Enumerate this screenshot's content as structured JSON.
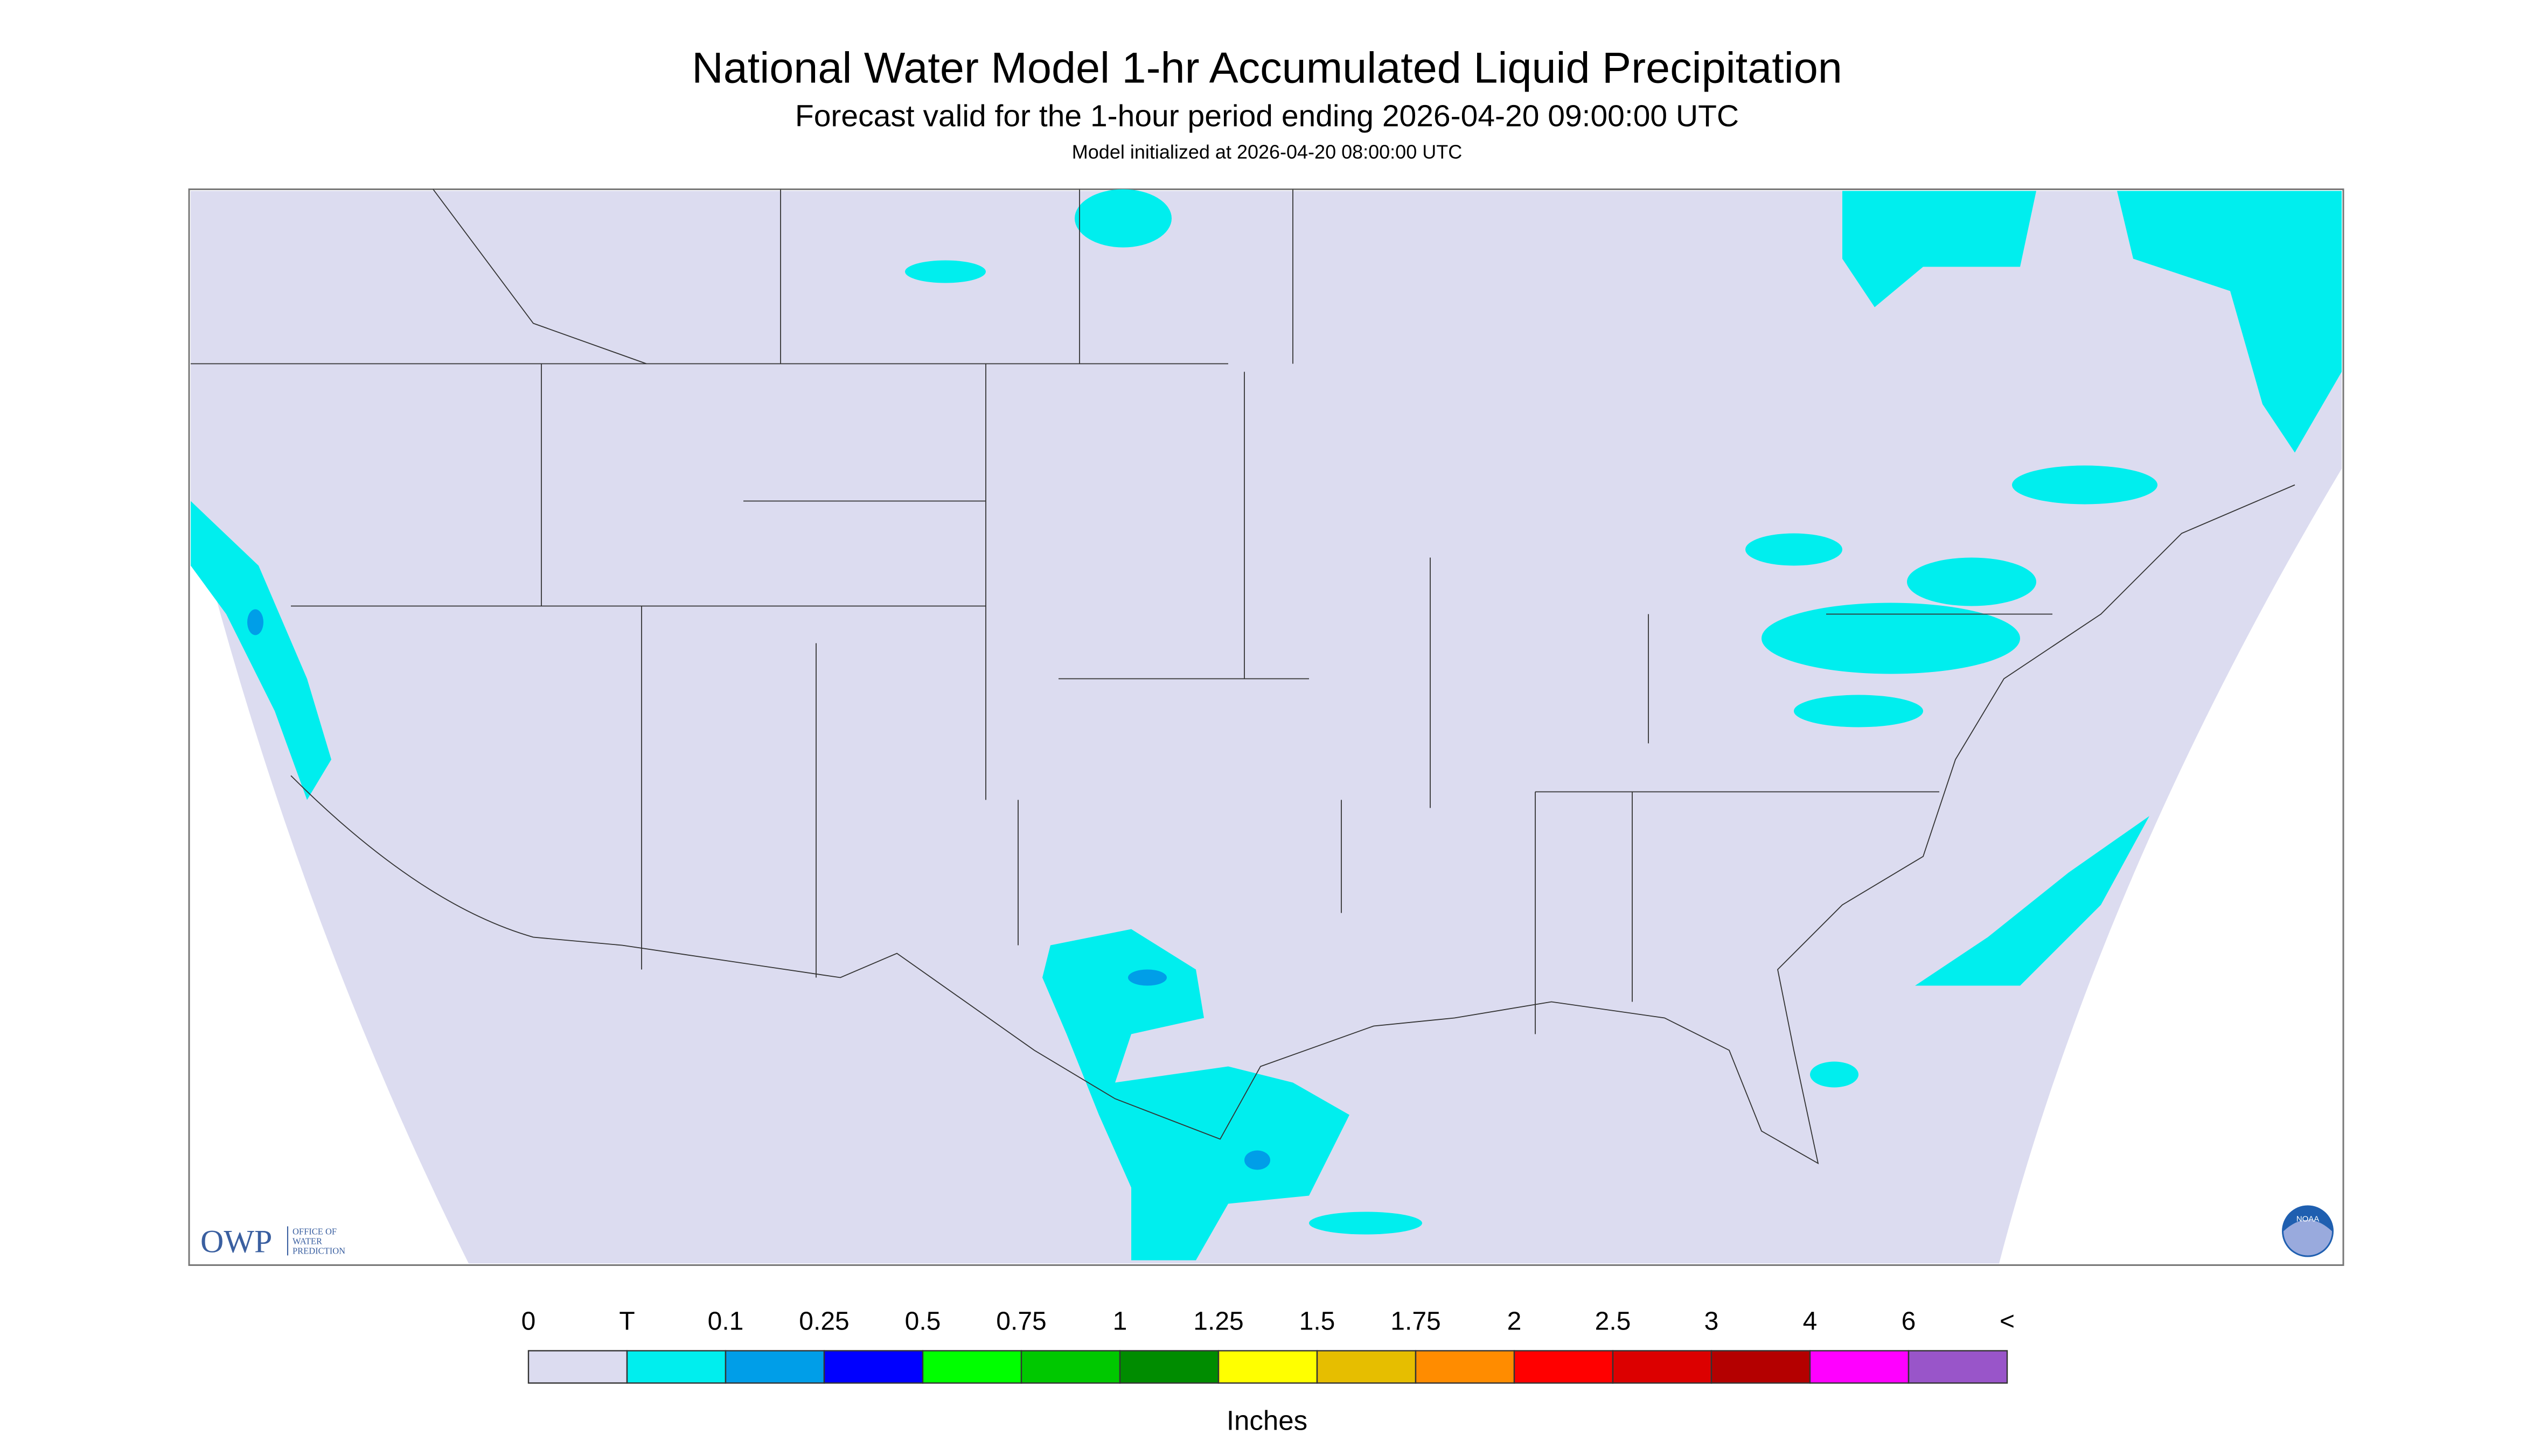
{
  "header": {
    "title": "National Water Model 1-hr Accumulated Liquid Precipitation",
    "subtitle": "Forecast valid for the 1-hour period ending 2026-04-20 09:00:00 UTC",
    "note": "Model initialized at 2026-04-20 08:00:00 UTC"
  },
  "logos": {
    "owp": "OWP",
    "owp_text": [
      "OFFICE OF",
      "WATER",
      "PREDICTION"
    ],
    "noaa": "NOAA"
  },
  "legend": {
    "labels": [
      "0",
      "T",
      "0.1",
      "0.25",
      "0.5",
      "0.75",
      "1",
      "1.25",
      "1.5",
      "1.75",
      "2",
      "2.5",
      "3",
      "4",
      "6",
      "<"
    ],
    "colors": [
      "#dcdcf0",
      "#00eeee",
      "#009ee8",
      "#0000ff",
      "#00ff00",
      "#00c800",
      "#008c00",
      "#ffff00",
      "#e6be00",
      "#ff8c00",
      "#ff0000",
      "#dc0000",
      "#b40000",
      "#ff00ff",
      "#9955c9"
    ],
    "units": "Inches"
  }
}
